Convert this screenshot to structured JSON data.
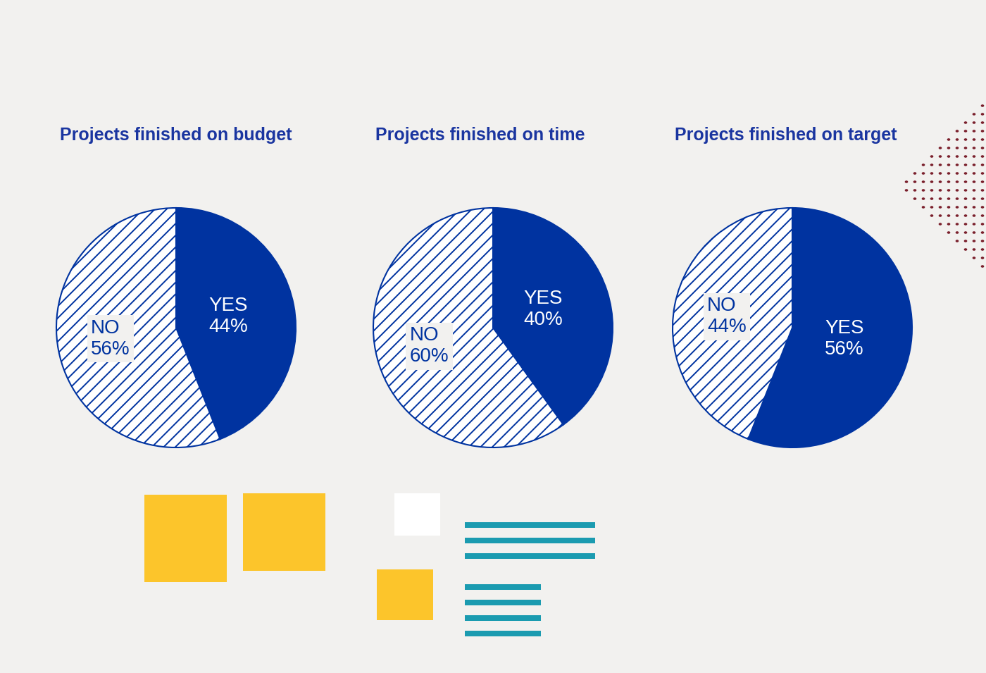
{
  "chart_data": [
    {
      "type": "pie",
      "title": "Projects finished on budget",
      "categories": [
        "YES",
        "NO"
      ],
      "values": [
        44,
        56
      ],
      "value_labels": [
        "44%",
        "56%"
      ],
      "colors": [
        "#0033a0",
        "#ffffff"
      ]
    },
    {
      "type": "pie",
      "title": "Projects finished on time",
      "categories": [
        "YES",
        "NO"
      ],
      "values": [
        40,
        60
      ],
      "value_labels": [
        "40%",
        "60%"
      ],
      "colors": [
        "#0033a0",
        "#ffffff"
      ]
    },
    {
      "type": "pie",
      "title": "Projects finished on target",
      "categories": [
        "YES",
        "NO"
      ],
      "values": [
        56,
        44
      ],
      "value_labels": [
        "56%",
        "44%"
      ],
      "colors": [
        "#0033a0",
        "#ffffff"
      ]
    }
  ]
}
